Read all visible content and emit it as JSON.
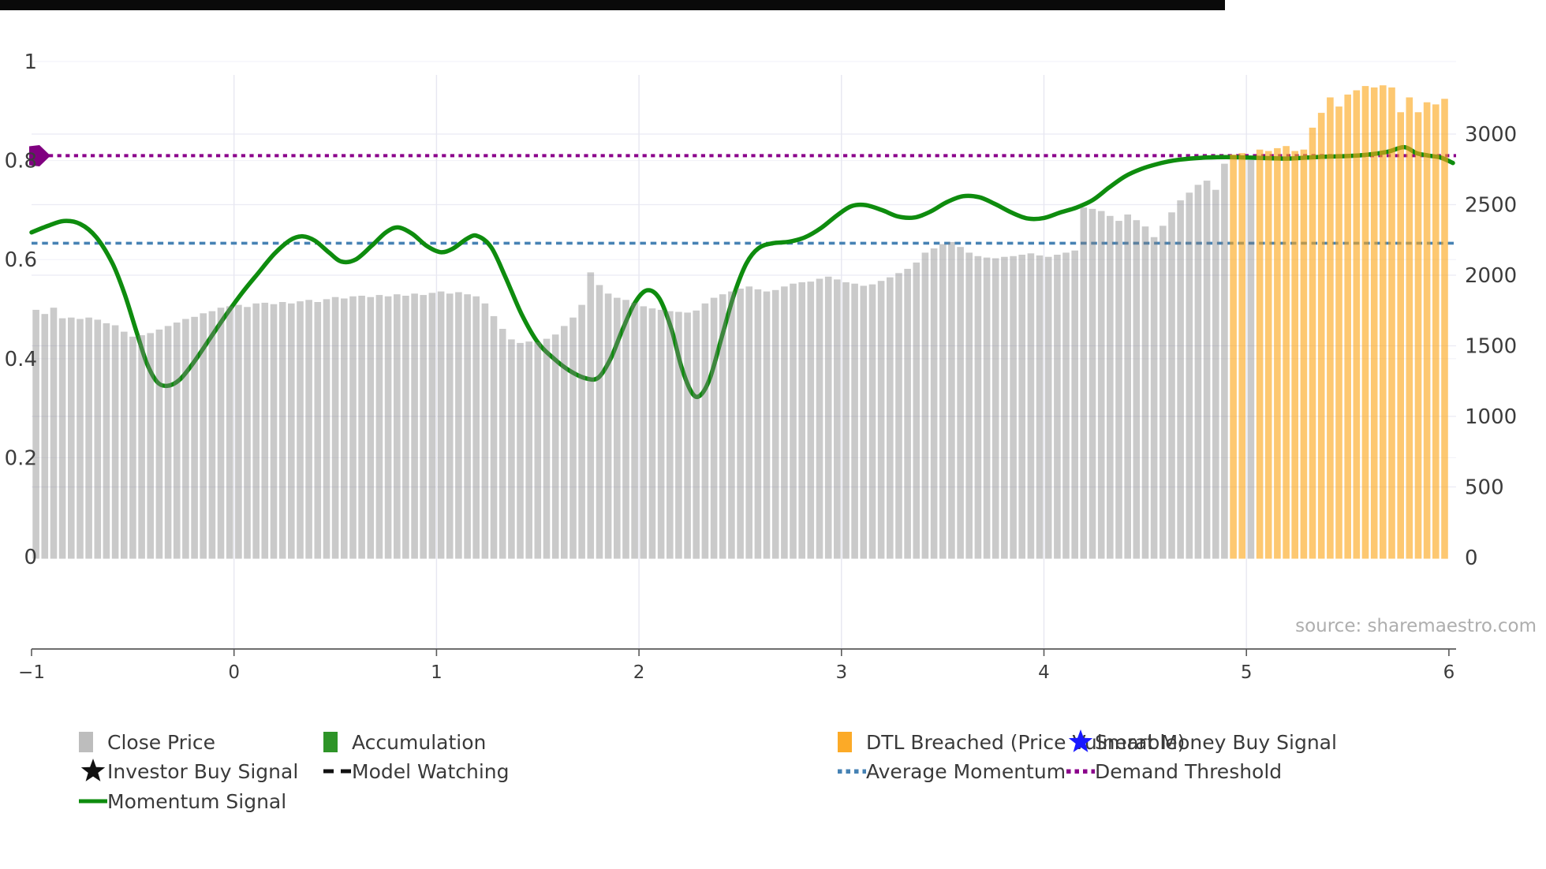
{
  "source_text": "source: sharemaestro.com",
  "colors": {
    "bar_gray": "rgba(128,128,128,0.42)",
    "bar_orange": "rgba(252,166,26,0.62)",
    "legend_gray": "#bdbdbd",
    "legend_green": "#2e9428",
    "legend_orange": "#fcaa27",
    "momentum_green": "#0e8c0e",
    "average_blue": "#4682b4",
    "threshold_purple": "#8b008b",
    "buy_star_blue": "#1919ff",
    "investor_star_black": "#111111",
    "axis_text": "#3c3c3c",
    "spine": "#5a5a5a",
    "grid_h": "#ebebf4",
    "grid_h2": "#f2f2f8",
    "grid_v": "#e7e7f1"
  },
  "legend": {
    "items": [
      {
        "id": "close-price",
        "label": "Close Price",
        "marker": "square",
        "color": "#bdbdbd",
        "col": 0,
        "row": 0
      },
      {
        "id": "accumulation",
        "label": "Accumulation",
        "marker": "square",
        "color": "#2e9428",
        "col": 1,
        "row": 0
      },
      {
        "id": "dtl-breached",
        "label": "DTL Breached (Price Vulnerable)",
        "marker": "square",
        "color": "#fcaa27",
        "col": 2,
        "row": 0
      },
      {
        "id": "smart-money-buy-signal",
        "label": "Smart Money Buy Signal",
        "marker": "star",
        "color": "#1919ff",
        "col": 3,
        "row": 0
      },
      {
        "id": "investor-buy-signal",
        "label": "Investor Buy Signal",
        "marker": "star",
        "color": "#111111",
        "col": 0,
        "row": 1
      },
      {
        "id": "model-watching",
        "label": "Model Watching",
        "marker": "dashes",
        "color": "#111111",
        "col": 1,
        "row": 1
      },
      {
        "id": "average-momentum",
        "label": "Average Momentum",
        "marker": "dots",
        "color": "#4682b4",
        "col": 2,
        "row": 1
      },
      {
        "id": "demand-threshold",
        "label": "Demand Threshold",
        "marker": "dots",
        "color": "#8b008b",
        "col": 3,
        "row": 1
      },
      {
        "id": "momentum-signal",
        "label": "Momentum Signal",
        "marker": "line",
        "color": "#0e8c0e",
        "col": 0,
        "row": 2
      }
    ]
  },
  "chart_data": {
    "type": "bar+line twin-axis",
    "title": "",
    "grid": true,
    "left_axis": {
      "ticks": [
        0,
        0.2,
        0.4,
        0.6,
        0.8,
        1
      ],
      "tick_labels": [
        "0",
        "0.2",
        "0.4",
        "0.6",
        "0.8",
        "1"
      ],
      "range": [
        0,
        1
      ]
    },
    "right_axis": {
      "ticks": [
        0,
        500,
        1000,
        1500,
        2000,
        2500,
        3000
      ],
      "tick_labels": [
        "0",
        "500",
        "1000",
        "1500",
        "2000",
        "2500",
        "3000"
      ]
    },
    "x_axis": {
      "ticks": [
        -1,
        0,
        1,
        2,
        3,
        4,
        5,
        6
      ],
      "tick_labels": [
        "−1",
        "0",
        "1",
        "2",
        "3",
        "4",
        "5",
        "6"
      ],
      "range": [
        -1,
        6
      ]
    },
    "demand_threshold": 0.81,
    "average_momentum": 0.633,
    "bars": {
      "x_start": -0.978,
      "x_step": 0.04348,
      "orange_start_index": 136,
      "gray_exception_indices": [
        138
      ],
      "values": [
        1755,
        1725,
        1770,
        1695,
        1700,
        1690,
        1700,
        1685,
        1660,
        1645,
        1600,
        1565,
        1575,
        1590,
        1615,
        1640,
        1665,
        1690,
        1705,
        1730,
        1745,
        1770,
        1780,
        1790,
        1775,
        1800,
        1805,
        1795,
        1810,
        1800,
        1815,
        1825,
        1810,
        1830,
        1845,
        1835,
        1850,
        1855,
        1845,
        1860,
        1850,
        1865,
        1855,
        1870,
        1860,
        1875,
        1885,
        1870,
        1880,
        1865,
        1850,
        1800,
        1710,
        1620,
        1545,
        1520,
        1530,
        1525,
        1550,
        1580,
        1640,
        1700,
        1790,
        2020,
        1930,
        1870,
        1840,
        1825,
        1805,
        1780,
        1765,
        1755,
        1745,
        1740,
        1735,
        1750,
        1800,
        1840,
        1865,
        1885,
        1905,
        1920,
        1900,
        1885,
        1895,
        1920,
        1940,
        1950,
        1955,
        1975,
        1990,
        1970,
        1950,
        1940,
        1925,
        1935,
        1960,
        1985,
        2015,
        2045,
        2090,
        2160,
        2190,
        2220,
        2235,
        2200,
        2160,
        2135,
        2125,
        2120,
        2130,
        2135,
        2145,
        2155,
        2140,
        2130,
        2145,
        2160,
        2175,
        2480,
        2470,
        2455,
        2420,
        2385,
        2430,
        2390,
        2345,
        2270,
        2350,
        2445,
        2530,
        2585,
        2640,
        2670,
        2605,
        2790,
        2855,
        2865,
        2815,
        2890,
        2880,
        2900,
        2915,
        2880,
        2890,
        3045,
        3150,
        3260,
        3195,
        3280,
        3310,
        3340,
        3330,
        3345,
        3330,
        3155,
        3260,
        3155,
        3225,
        3210,
        3250
      ]
    },
    "momentum_line": [
      [
        -1.0,
        0.655
      ],
      [
        -0.92,
        0.668
      ],
      [
        -0.84,
        0.678
      ],
      [
        -0.76,
        0.672
      ],
      [
        -0.68,
        0.645
      ],
      [
        -0.6,
        0.592
      ],
      [
        -0.54,
        0.53
      ],
      [
        -0.48,
        0.452
      ],
      [
        -0.43,
        0.39
      ],
      [
        -0.38,
        0.353
      ],
      [
        -0.33,
        0.345
      ],
      [
        -0.27,
        0.357
      ],
      [
        -0.2,
        0.392
      ],
      [
        -0.12,
        0.44
      ],
      [
        -0.04,
        0.488
      ],
      [
        0.04,
        0.533
      ],
      [
        0.12,
        0.573
      ],
      [
        0.2,
        0.612
      ],
      [
        0.28,
        0.64
      ],
      [
        0.34,
        0.647
      ],
      [
        0.4,
        0.638
      ],
      [
        0.47,
        0.614
      ],
      [
        0.53,
        0.596
      ],
      [
        0.6,
        0.6
      ],
      [
        0.68,
        0.628
      ],
      [
        0.75,
        0.655
      ],
      [
        0.81,
        0.665
      ],
      [
        0.88,
        0.652
      ],
      [
        0.95,
        0.628
      ],
      [
        1.02,
        0.615
      ],
      [
        1.08,
        0.622
      ],
      [
        1.15,
        0.642
      ],
      [
        1.2,
        0.648
      ],
      [
        1.27,
        0.625
      ],
      [
        1.34,
        0.565
      ],
      [
        1.42,
        0.49
      ],
      [
        1.5,
        0.433
      ],
      [
        1.58,
        0.4
      ],
      [
        1.66,
        0.375
      ],
      [
        1.74,
        0.36
      ],
      [
        1.8,
        0.362
      ],
      [
        1.86,
        0.4
      ],
      [
        1.92,
        0.46
      ],
      [
        1.98,
        0.513
      ],
      [
        2.04,
        0.538
      ],
      [
        2.1,
        0.522
      ],
      [
        2.16,
        0.46
      ],
      [
        2.21,
        0.383
      ],
      [
        2.26,
        0.332
      ],
      [
        2.3,
        0.325
      ],
      [
        2.35,
        0.36
      ],
      [
        2.41,
        0.445
      ],
      [
        2.47,
        0.53
      ],
      [
        2.53,
        0.592
      ],
      [
        2.59,
        0.623
      ],
      [
        2.66,
        0.633
      ],
      [
        2.74,
        0.636
      ],
      [
        2.82,
        0.645
      ],
      [
        2.9,
        0.664
      ],
      [
        2.98,
        0.69
      ],
      [
        3.05,
        0.708
      ],
      [
        3.12,
        0.71
      ],
      [
        3.2,
        0.7
      ],
      [
        3.28,
        0.687
      ],
      [
        3.36,
        0.685
      ],
      [
        3.44,
        0.697
      ],
      [
        3.52,
        0.716
      ],
      [
        3.6,
        0.728
      ],
      [
        3.68,
        0.726
      ],
      [
        3.76,
        0.712
      ],
      [
        3.84,
        0.695
      ],
      [
        3.92,
        0.683
      ],
      [
        4.0,
        0.684
      ],
      [
        4.08,
        0.695
      ],
      [
        4.16,
        0.705
      ],
      [
        4.24,
        0.72
      ],
      [
        4.32,
        0.745
      ],
      [
        4.4,
        0.768
      ],
      [
        4.48,
        0.783
      ],
      [
        4.56,
        0.793
      ],
      [
        4.64,
        0.8
      ],
      [
        4.72,
        0.804
      ],
      [
        4.8,
        0.806
      ],
      [
        4.9,
        0.807
      ],
      [
        5.0,
        0.806
      ],
      [
        5.1,
        0.805
      ],
      [
        5.2,
        0.804
      ],
      [
        5.3,
        0.806
      ],
      [
        5.4,
        0.808
      ],
      [
        5.5,
        0.809
      ],
      [
        5.6,
        0.812
      ],
      [
        5.7,
        0.818
      ],
      [
        5.78,
        0.827
      ],
      [
        5.84,
        0.815
      ],
      [
        5.9,
        0.81
      ],
      [
        5.96,
        0.806
      ],
      [
        6.02,
        0.795
      ]
    ]
  }
}
